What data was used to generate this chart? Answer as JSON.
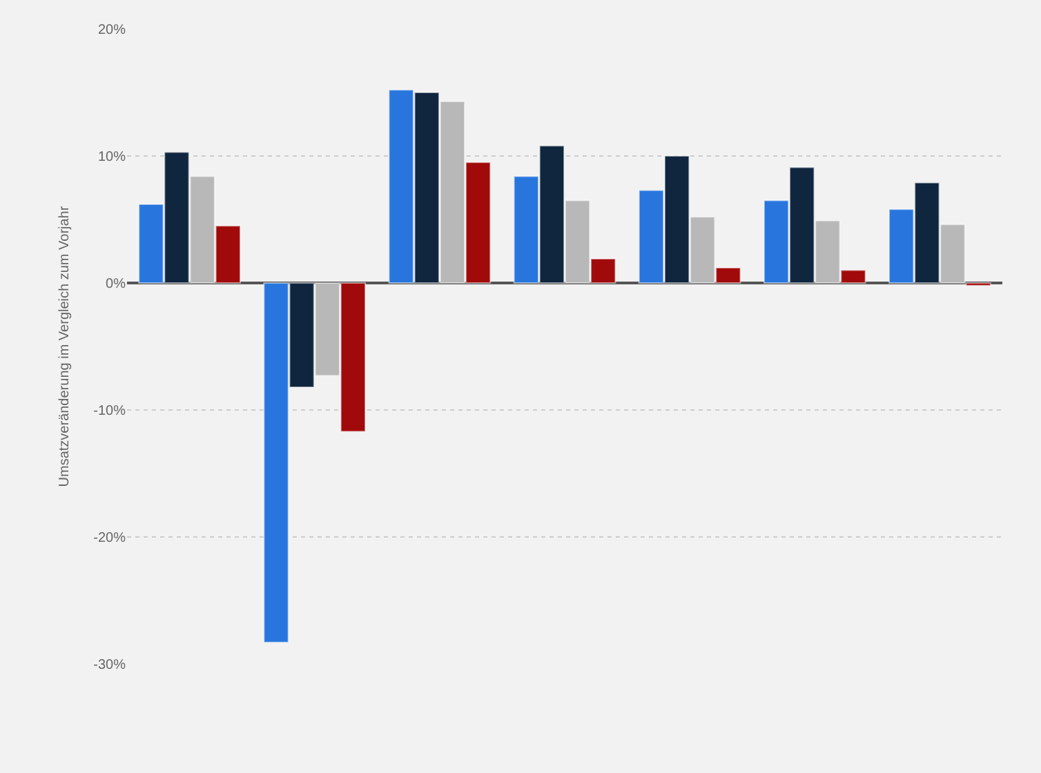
{
  "chart_data": {
    "type": "bar",
    "ylabel": "Umsatzveränderung im Vergleich zum Vorjahr",
    "categories": [
      null,
      null,
      null,
      null,
      null,
      null,
      null
    ],
    "series": [
      {
        "color": "#2876dd",
        "values": [
          6.2,
          -28.3,
          15.2,
          8.4,
          7.3,
          6.5,
          5.8
        ]
      },
      {
        "color": "#10263f",
        "values": [
          10.3,
          -8.2,
          15.0,
          10.8,
          10.0,
          9.1,
          7.9
        ]
      },
      {
        "color": "#b8b8b8",
        "values": [
          8.4,
          -7.3,
          14.3,
          6.5,
          5.2,
          4.9,
          4.6
        ]
      },
      {
        "color": "#a10a0a",
        "values": [
          4.5,
          -11.7,
          9.5,
          1.9,
          1.2,
          1.0,
          -0.2
        ]
      }
    ],
    "ylim": [
      -30,
      20
    ],
    "yticks": [
      {
        "value": -30,
        "label": "-30%"
      },
      {
        "value": -20,
        "label": "-20%"
      },
      {
        "value": -10,
        "label": "-10%"
      },
      {
        "value": 0,
        "label": "0%"
      },
      {
        "value": 10,
        "label": "10%"
      },
      {
        "value": 20,
        "label": "20%"
      }
    ],
    "grid": "y"
  }
}
